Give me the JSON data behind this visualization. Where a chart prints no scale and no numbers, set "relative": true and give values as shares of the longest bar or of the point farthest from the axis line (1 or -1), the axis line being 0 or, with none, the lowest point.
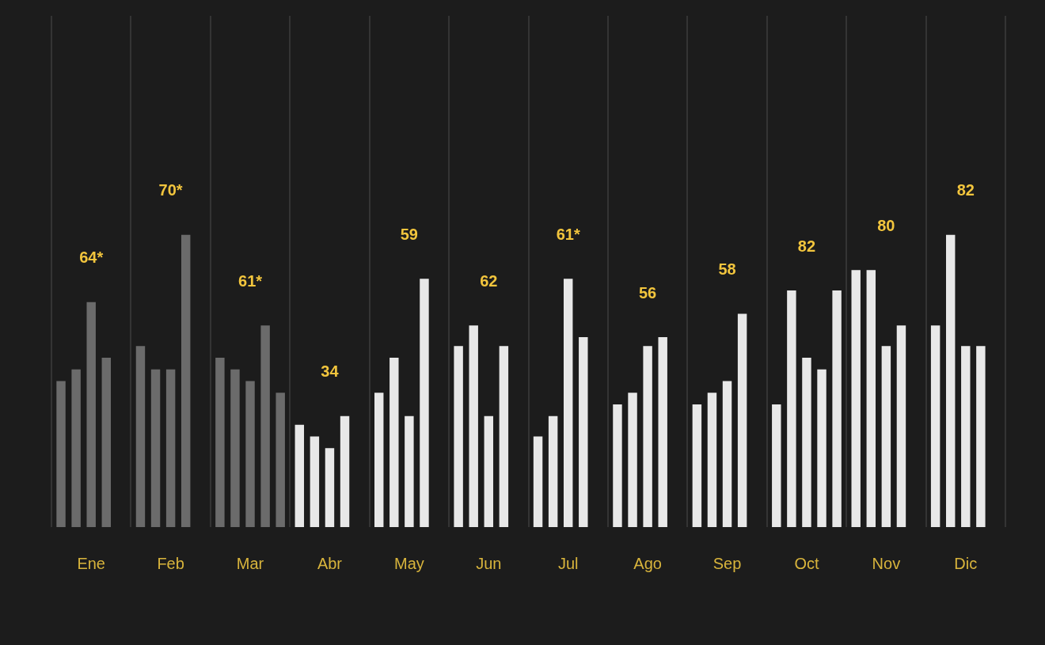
{
  "chart_data": {
    "type": "bar",
    "relative": true,
    "grid": "x",
    "legend": false,
    "tick_labels": "x",
    "categories": [
      "Ene",
      "Feb",
      "Mar",
      "Abr",
      "May",
      "Jun",
      "Jul",
      "Ago",
      "Sep",
      "Oct",
      "Nov",
      "Dic"
    ],
    "series": [
      {
        "colors": [
          "#6b6b6b",
          "#6b6b6b",
          "#6b6b6b",
          "#e8e8e8",
          "#e8e8e8",
          "#e8e8e8",
          "#e8e8e8",
          "#e8e8e8",
          "#e8e8e8",
          "#e8e8e8",
          "#e8e8e8",
          "#e8e8e8"
        ],
        "values": [
          0.5,
          0.62,
          0.58,
          0.35,
          0.46,
          0.62,
          0.31,
          0.42,
          0.42,
          0.42,
          0.88,
          0.69
        ]
      },
      {
        "colors": [
          "#6b6b6b",
          "#6b6b6b",
          "#6b6b6b",
          "#e8e8e8",
          "#e8e8e8",
          "#e8e8e8",
          "#e8e8e8",
          "#e8e8e8",
          "#e8e8e8",
          "#e8e8e8",
          "#e8e8e8",
          "#e8e8e8"
        ],
        "values": [
          0.54,
          0.54,
          0.54,
          0.31,
          0.58,
          0.69,
          0.38,
          0.46,
          0.46,
          0.81,
          0.88,
          1
        ]
      },
      {
        "colors": [
          "#6b6b6b",
          "#6b6b6b",
          "#6b6b6b",
          "#e8e8e8",
          "#e8e8e8",
          "#e8e8e8",
          "#e8e8e8",
          "#e8e8e8",
          "#e8e8e8",
          "#e8e8e8",
          "#e8e8e8",
          "#e8e8e8"
        ],
        "values": [
          0.77,
          0.54,
          0.5,
          0.27,
          0.38,
          0.38,
          0.85,
          0.62,
          0.5,
          0.58,
          0.62,
          0.62
        ]
      },
      {
        "colors": [
          "#6b6b6b",
          "#6b6b6b",
          "#6b6b6b",
          "#e8e8e8",
          "#e8e8e8",
          "#e8e8e8",
          "#e8e8e8",
          "#e8e8e8",
          "#e8e8e8",
          "#e8e8e8",
          "#e8e8e8",
          "#e8e8e8"
        ],
        "values": [
          0.58,
          1,
          0.69,
          0.38,
          0.85,
          0.62,
          0.65,
          0.65,
          0.73,
          0.54,
          0.69,
          0.62
        ]
      },
      {
        "colors": [
          null,
          null,
          "#6b6b6b",
          null,
          null,
          null,
          null,
          null,
          null,
          "#e8e8e8",
          null,
          null
        ],
        "values": [
          null,
          null,
          0.46,
          null,
          null,
          null,
          null,
          null,
          null,
          0.81,
          null,
          null
        ]
      }
    ],
    "annotations": [
      "64*",
      "70*",
      "61*",
      "34",
      "59",
      "62",
      "61*",
      "56",
      "58",
      "82",
      "80",
      "82"
    ]
  }
}
